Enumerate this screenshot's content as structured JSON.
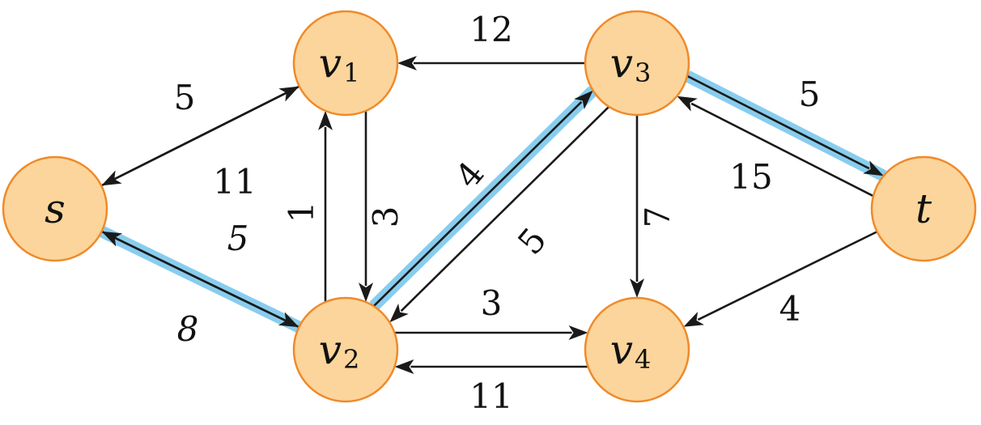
{
  "nodes": [
    {
      "id": "s",
      "name": "s",
      "sub": ""
    },
    {
      "id": "v1",
      "name": "v",
      "sub": "1"
    },
    {
      "id": "v2",
      "name": "v",
      "sub": "2"
    },
    {
      "id": "v3",
      "name": "v",
      "sub": "3"
    },
    {
      "id": "v4",
      "name": "v",
      "sub": "4"
    },
    {
      "id": "t",
      "name": "t",
      "sub": ""
    }
  ],
  "edges": [
    {
      "from": "s",
      "to": "v1",
      "weight": "5",
      "highlighted": false
    },
    {
      "from": "v1",
      "to": "s",
      "weight": "11",
      "highlighted": false
    },
    {
      "from": "s",
      "to": "v2",
      "weight": "5",
      "highlighted": true
    },
    {
      "from": "v2",
      "to": "s",
      "weight": "8",
      "highlighted": false
    },
    {
      "from": "v1",
      "to": "v2",
      "weight": "1",
      "highlighted": false
    },
    {
      "from": "v2",
      "to": "v1",
      "weight": "3",
      "highlighted": false
    },
    {
      "from": "v3",
      "to": "v1",
      "weight": "12",
      "highlighted": false
    },
    {
      "from": "v2",
      "to": "v3",
      "weight": "4",
      "highlighted": true
    },
    {
      "from": "v3",
      "to": "v2",
      "weight": "5",
      "highlighted": false
    },
    {
      "from": "v2",
      "to": "v4",
      "weight": "3",
      "highlighted": false
    },
    {
      "from": "v4",
      "to": "v2",
      "weight": "11",
      "highlighted": false
    },
    {
      "from": "v3",
      "to": "v4",
      "weight": "7",
      "highlighted": false
    },
    {
      "from": "v3",
      "to": "t",
      "weight": "5",
      "highlighted": true
    },
    {
      "from": "t",
      "to": "v3",
      "weight": "15",
      "highlighted": false
    },
    {
      "from": "t",
      "to": "v4",
      "weight": "4",
      "highlighted": false
    }
  ],
  "colors": {
    "node_fill": "#fbd59b",
    "node_stroke": "#ef8a2a",
    "highlight": "#88cdee",
    "edge": "#1a1a1a"
  }
}
